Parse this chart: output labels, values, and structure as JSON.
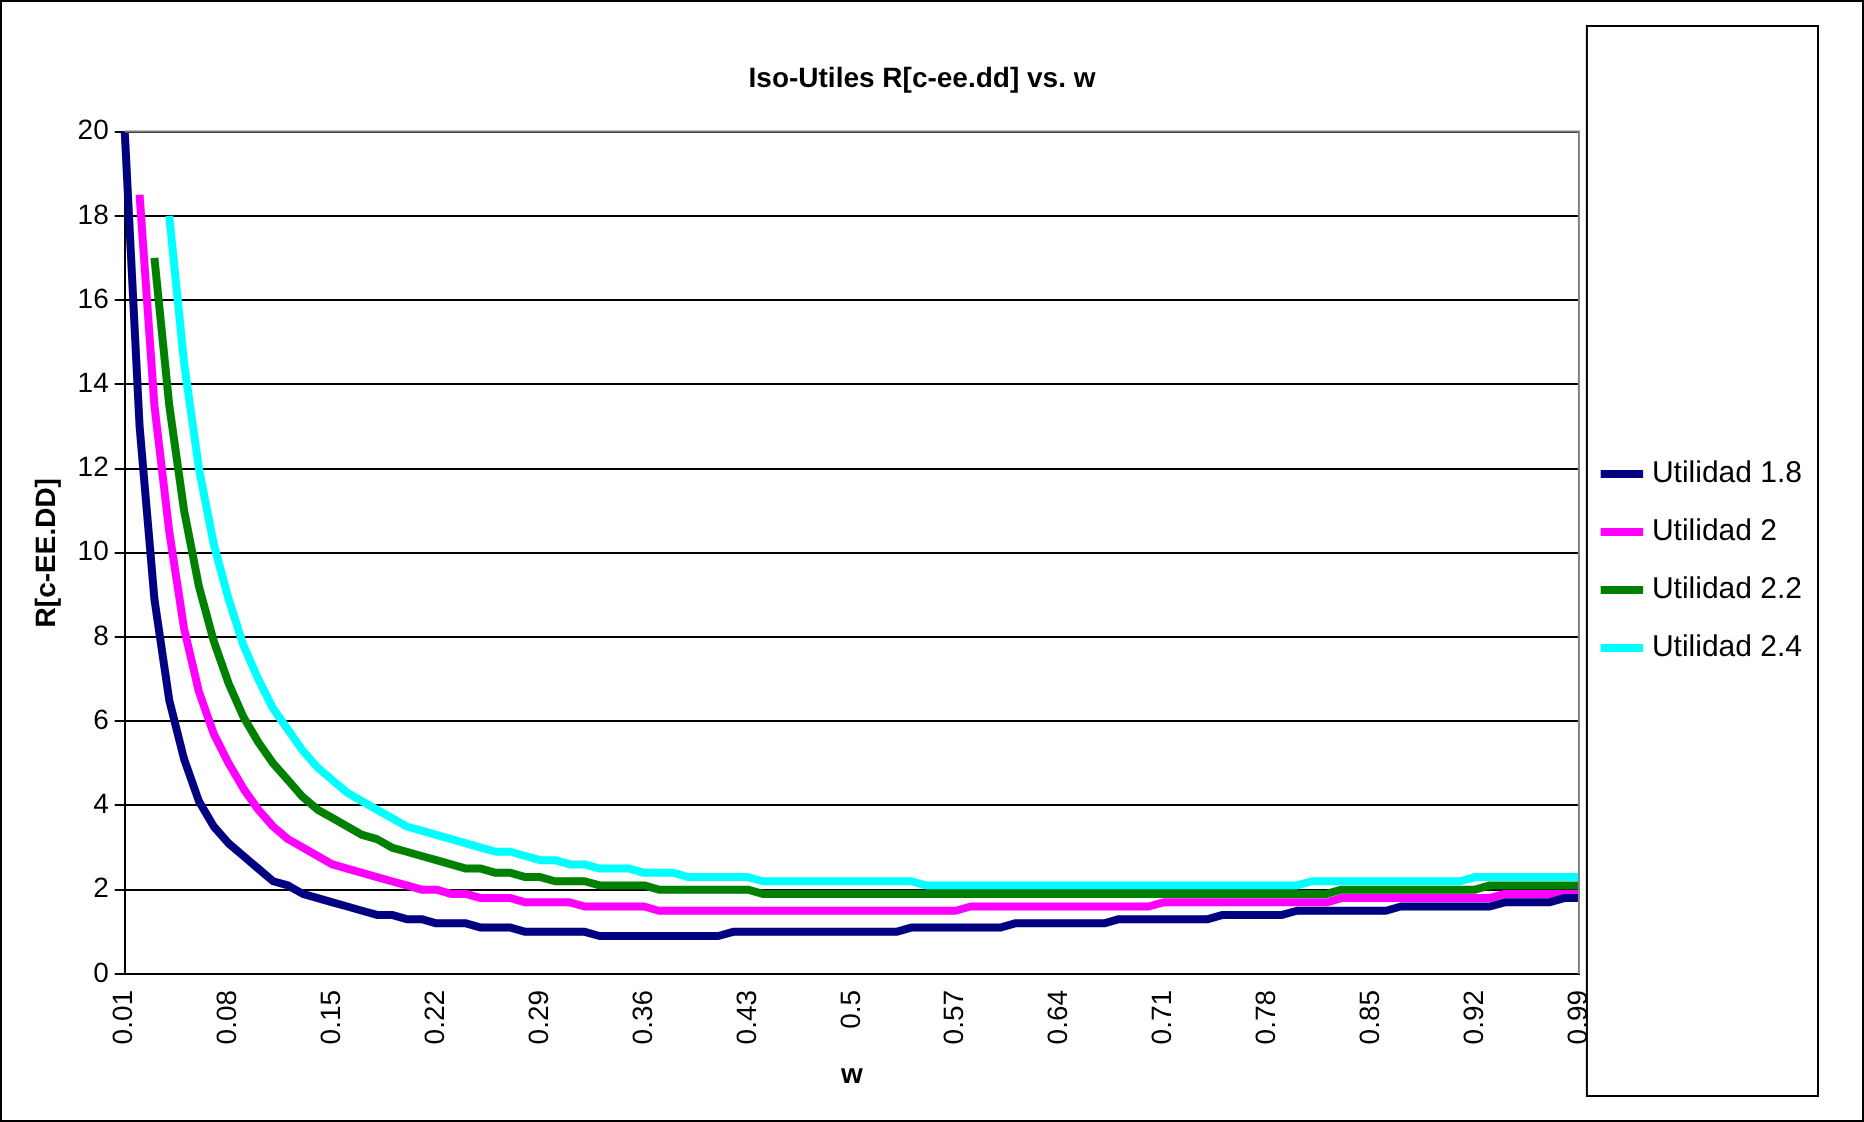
{
  "chart_data": {
    "type": "line",
    "title": "Iso-Utiles R[c-ee.dd] vs. w",
    "xlabel": "w",
    "ylabel": "R[c-EE.DD]",
    "categories": [
      "0.01",
      null,
      null,
      null,
      null,
      null,
      null,
      "0.08",
      null,
      null,
      null,
      null,
      null,
      null,
      "0.15",
      null,
      null,
      null,
      null,
      null,
      null,
      "0.22",
      null,
      null,
      null,
      null,
      null,
      null,
      "0.29",
      null,
      null,
      null,
      null,
      null,
      null,
      "0.36",
      null,
      null,
      null,
      null,
      null,
      null,
      "0.43",
      null,
      null,
      null,
      null,
      null,
      null,
      "0.5",
      null,
      null,
      null,
      null,
      null,
      null,
      "0.57",
      null,
      null,
      null,
      null,
      null,
      null,
      "0.64",
      null,
      null,
      null,
      null,
      null,
      null,
      "0.71",
      null,
      null,
      null,
      null,
      null,
      null,
      "0.78",
      null,
      null,
      null,
      null,
      null,
      null,
      "0.85",
      null,
      null,
      null,
      null,
      null,
      null,
      "0.92",
      null,
      null,
      null,
      null,
      null,
      null,
      "0.99"
    ],
    "series": [
      {
        "name": "Utilidad 1.8",
        "color": "#000080",
        "values": [
          20,
          13,
          8.9,
          6.5,
          5.1,
          4.1,
          3.5,
          3.1,
          2.8,
          2.5,
          2.2,
          2.1,
          1.9,
          1.8,
          1.7,
          1.6,
          1.5,
          1.4,
          1.4,
          1.3,
          1.3,
          1.2,
          1.2,
          1.2,
          1.1,
          1.1,
          1.1,
          1.0,
          1.0,
          1.0,
          1.0,
          1.0,
          0.9,
          0.9,
          0.9,
          0.9,
          0.9,
          0.9,
          0.9,
          0.9,
          0.9,
          1.0,
          1.0,
          1.0,
          1.0,
          1.0,
          1.0,
          1.0,
          1.0,
          1.0,
          1.0,
          1.0,
          1.0,
          1.1,
          1.1,
          1.1,
          1.1,
          1.1,
          1.1,
          1.1,
          1.2,
          1.2,
          1.2,
          1.2,
          1.2,
          1.2,
          1.2,
          1.3,
          1.3,
          1.3,
          1.3,
          1.3,
          1.3,
          1.3,
          1.4,
          1.4,
          1.4,
          1.4,
          1.4,
          1.5,
          1.5,
          1.5,
          1.5,
          1.5,
          1.5,
          1.5,
          1.6,
          1.6,
          1.6,
          1.6,
          1.6,
          1.6,
          1.6,
          1.7,
          1.7,
          1.7,
          1.7,
          1.8,
          1.8
        ]
      },
      {
        "name": "Utilidad 2",
        "color": "#ff00ff",
        "values": [
          null,
          18.5,
          13.5,
          10.5,
          8.2,
          6.7,
          5.7,
          5.0,
          4.4,
          3.9,
          3.5,
          3.2,
          3.0,
          2.8,
          2.6,
          2.5,
          2.4,
          2.3,
          2.2,
          2.1,
          2.0,
          2.0,
          1.9,
          1.9,
          1.8,
          1.8,
          1.8,
          1.7,
          1.7,
          1.7,
          1.7,
          1.6,
          1.6,
          1.6,
          1.6,
          1.6,
          1.5,
          1.5,
          1.5,
          1.5,
          1.5,
          1.5,
          1.5,
          1.5,
          1.5,
          1.5,
          1.5,
          1.5,
          1.5,
          1.5,
          1.5,
          1.5,
          1.5,
          1.5,
          1.5,
          1.5,
          1.5,
          1.6,
          1.6,
          1.6,
          1.6,
          1.6,
          1.6,
          1.6,
          1.6,
          1.6,
          1.6,
          1.6,
          1.6,
          1.6,
          1.7,
          1.7,
          1.7,
          1.7,
          1.7,
          1.7,
          1.7,
          1.7,
          1.7,
          1.7,
          1.7,
          1.7,
          1.8,
          1.8,
          1.8,
          1.8,
          1.8,
          1.8,
          1.8,
          1.8,
          1.8,
          1.8,
          1.8,
          1.9,
          1.9,
          1.9,
          1.9,
          1.9,
          1.9
        ]
      },
      {
        "name": "Utilidad 2.2",
        "color": "#008000",
        "values": [
          null,
          null,
          17,
          13.5,
          11,
          9.2,
          7.9,
          6.9,
          6.1,
          5.5,
          5.0,
          4.6,
          4.2,
          3.9,
          3.7,
          3.5,
          3.3,
          3.2,
          3.0,
          2.9,
          2.8,
          2.7,
          2.6,
          2.5,
          2.5,
          2.4,
          2.4,
          2.3,
          2.3,
          2.2,
          2.2,
          2.2,
          2.1,
          2.1,
          2.1,
          2.1,
          2.0,
          2.0,
          2.0,
          2.0,
          2.0,
          2.0,
          2.0,
          1.9,
          1.9,
          1.9,
          1.9,
          1.9,
          1.9,
          1.9,
          1.9,
          1.9,
          1.9,
          1.9,
          1.9,
          1.9,
          1.9,
          1.9,
          1.9,
          1.9,
          1.9,
          1.9,
          1.9,
          1.9,
          1.9,
          1.9,
          1.9,
          1.9,
          1.9,
          1.9,
          1.9,
          1.9,
          1.9,
          1.9,
          1.9,
          1.9,
          1.9,
          1.9,
          1.9,
          1.9,
          1.9,
          1.9,
          2.0,
          2.0,
          2.0,
          2.0,
          2.0,
          2.0,
          2.0,
          2.0,
          2.0,
          2.0,
          2.1,
          2.1,
          2.1,
          2.1,
          2.1,
          2.1,
          2.1
        ]
      },
      {
        "name": "Utilidad 2.4",
        "color": "#00ffff",
        "values": [
          null,
          null,
          null,
          18,
          14.5,
          12,
          10.2,
          8.9,
          7.8,
          7.0,
          6.3,
          5.8,
          5.3,
          4.9,
          4.6,
          4.3,
          4.1,
          3.9,
          3.7,
          3.5,
          3.4,
          3.3,
          3.2,
          3.1,
          3.0,
          2.9,
          2.9,
          2.8,
          2.7,
          2.7,
          2.6,
          2.6,
          2.5,
          2.5,
          2.5,
          2.4,
          2.4,
          2.4,
          2.3,
          2.3,
          2.3,
          2.3,
          2.3,
          2.2,
          2.2,
          2.2,
          2.2,
          2.2,
          2.2,
          2.2,
          2.2,
          2.2,
          2.2,
          2.2,
          2.1,
          2.1,
          2.1,
          2.1,
          2.1,
          2.1,
          2.1,
          2.1,
          2.1,
          2.1,
          2.1,
          2.1,
          2.1,
          2.1,
          2.1,
          2.1,
          2.1,
          2.1,
          2.1,
          2.1,
          2.1,
          2.1,
          2.1,
          2.1,
          2.1,
          2.1,
          2.2,
          2.2,
          2.2,
          2.2,
          2.2,
          2.2,
          2.2,
          2.2,
          2.2,
          2.2,
          2.2,
          2.3,
          2.3,
          2.3,
          2.3,
          2.3,
          2.3,
          2.3,
          2.3
        ]
      }
    ],
    "ylim": [
      0,
      20
    ],
    "yticks": [
      0,
      2,
      4,
      6,
      8,
      10,
      12,
      14,
      16,
      18,
      20
    ],
    "grid": "y",
    "legend": "right",
    "marker": "none",
    "line_style": "solid"
  }
}
